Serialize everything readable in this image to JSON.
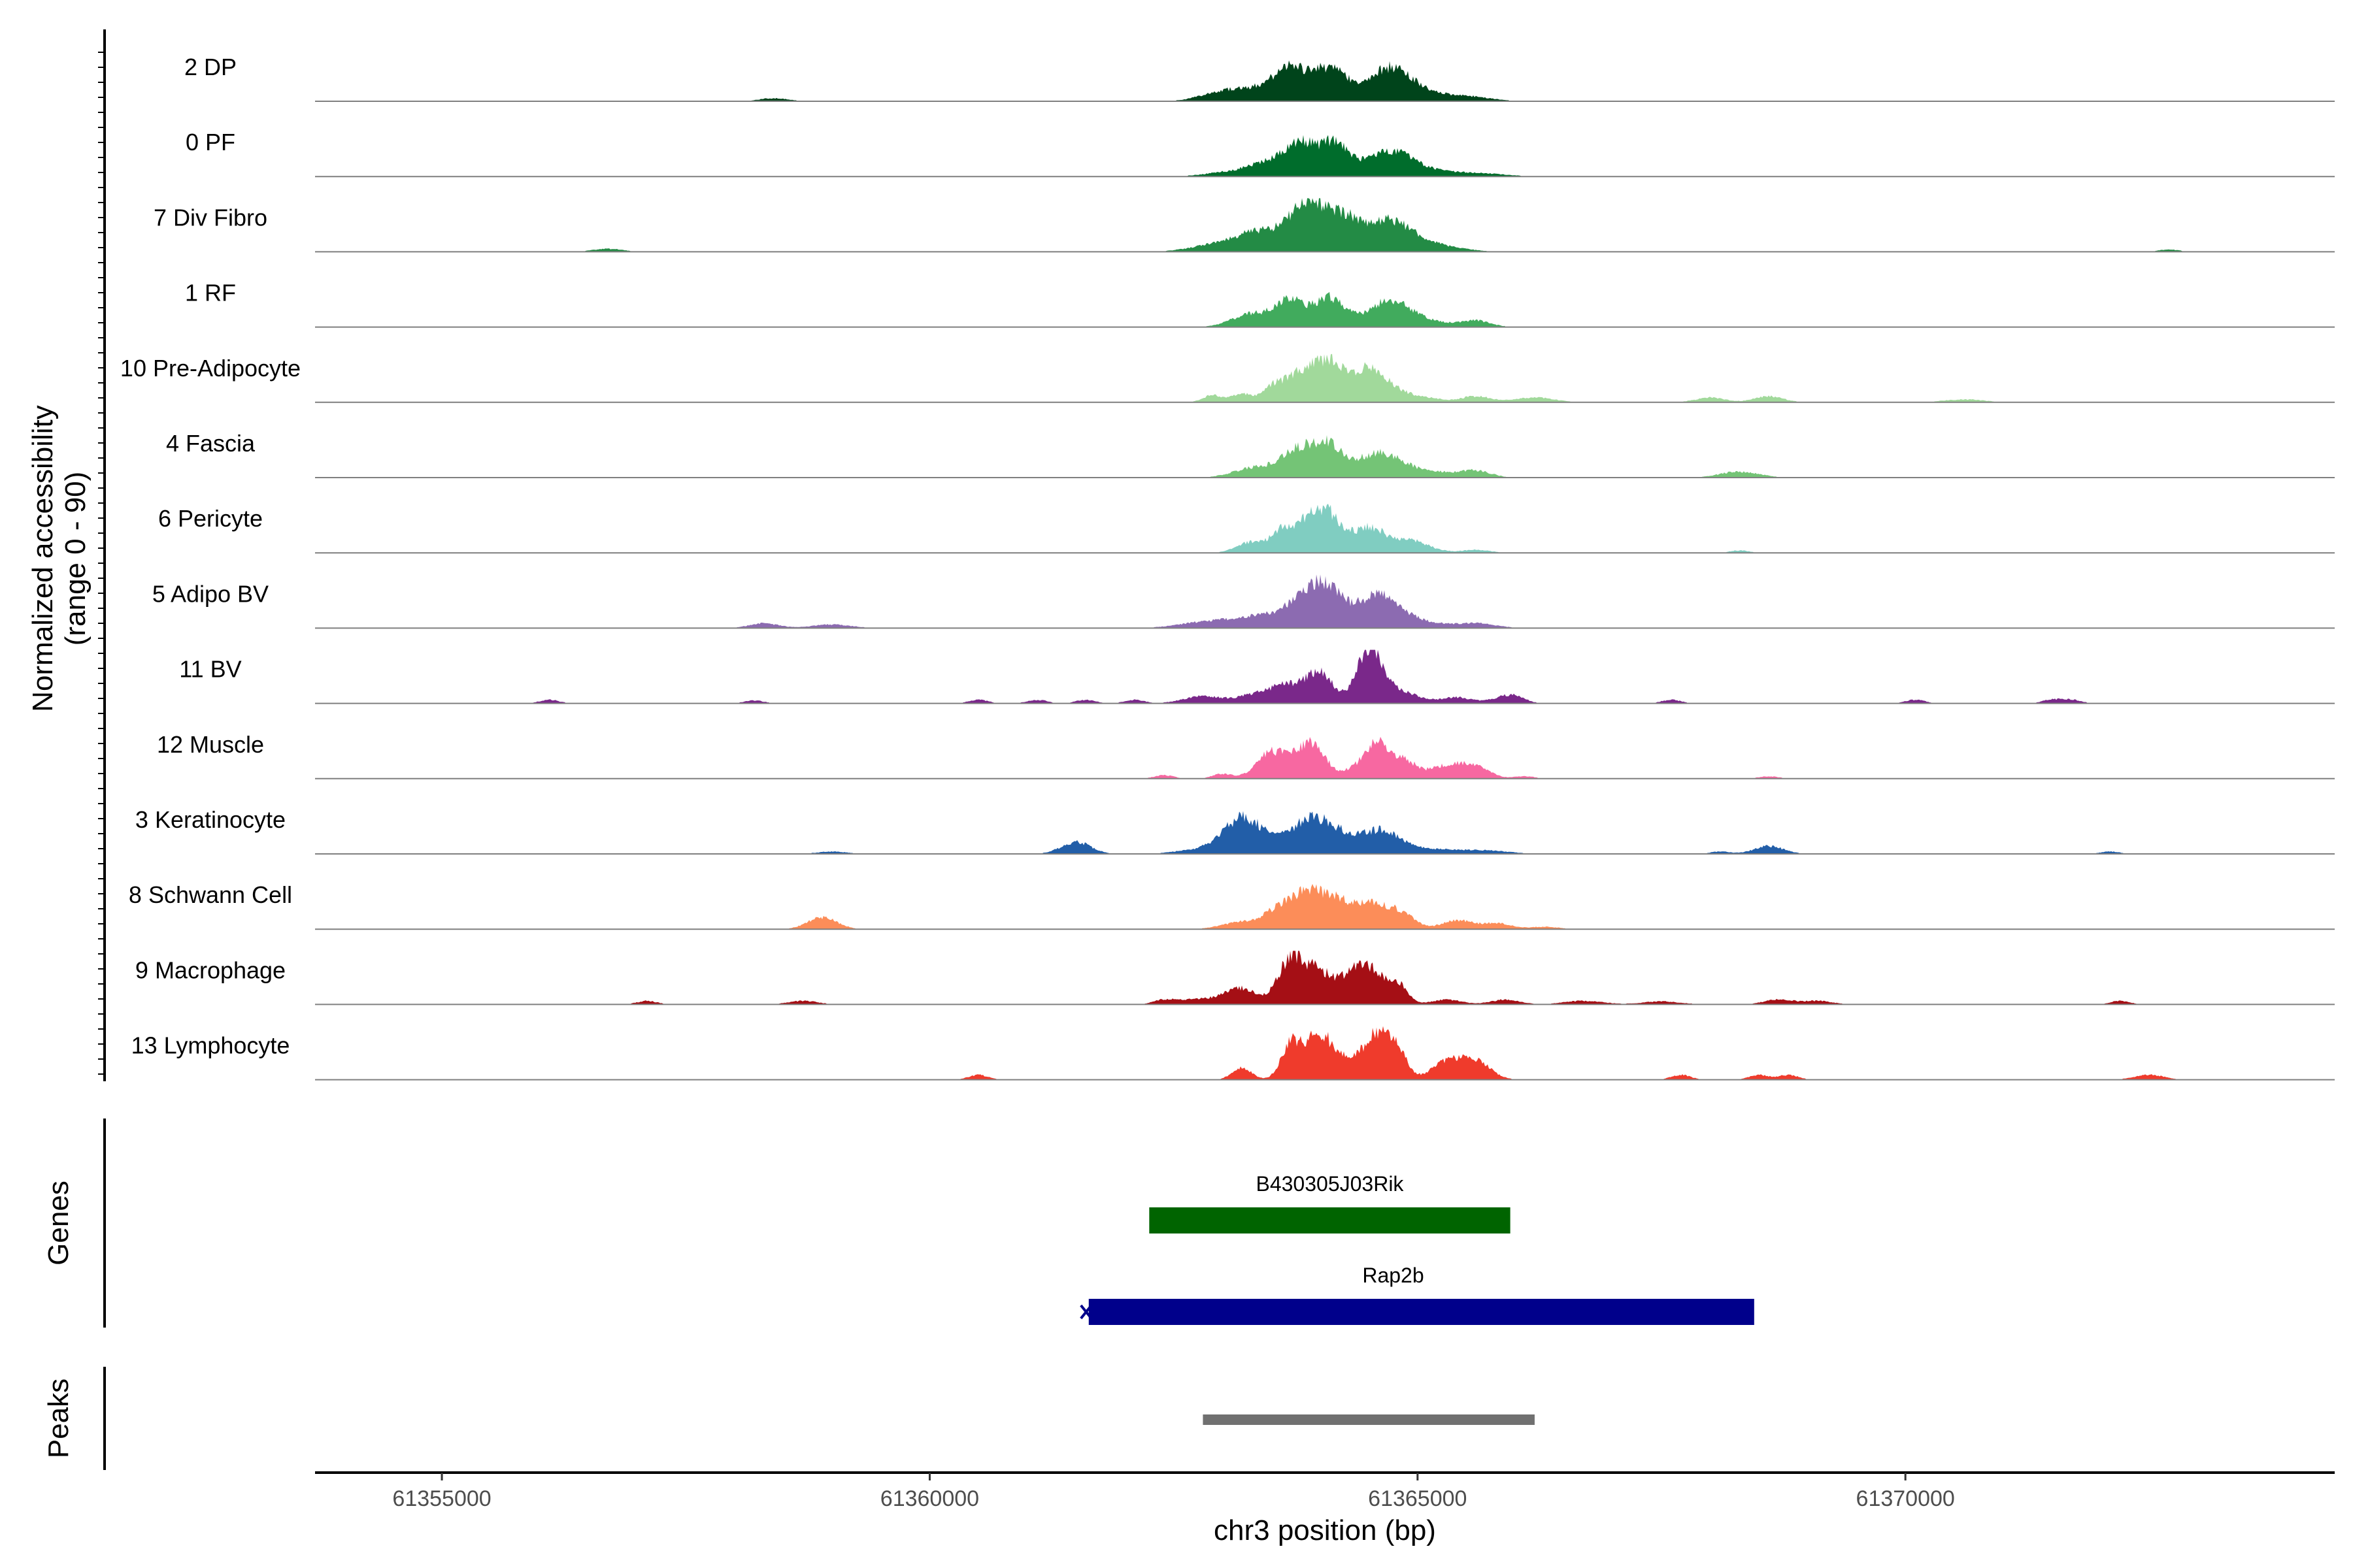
{
  "chart_data": {
    "type": "area",
    "title": "",
    "xlabel": "chr3 position (bp)",
    "ylabel": "Normalized accessibility",
    "ylabel_sub": "(range 0 - 90)",
    "ylim": [
      0,
      90
    ],
    "xlim": [
      61353700,
      61374400
    ],
    "x_ticks": [
      61355000,
      61360000,
      61365000,
      61370000
    ],
    "x_tick_labels": [
      "61355000",
      "61360000",
      "61365000",
      "61370000"
    ],
    "series": [
      {
        "name": "2 DP",
        "color": "#00441b",
        "peaks": [
          [
            61362900,
            180,
            6
          ],
          [
            61363300,
            300,
            22
          ],
          [
            61363700,
            160,
            48
          ],
          [
            61364100,
            170,
            55
          ],
          [
            61364700,
            220,
            52
          ],
          [
            61365100,
            300,
            12
          ],
          [
            61365600,
            200,
            5
          ],
          [
            61358400,
            150,
            5
          ]
        ]
      },
      {
        "name": "0 PF",
        "color": "#006d2c",
        "peaks": [
          [
            61363100,
            250,
            8
          ],
          [
            61363500,
            200,
            22
          ],
          [
            61363800,
            150,
            50
          ],
          [
            61364150,
            150,
            55
          ],
          [
            61364700,
            220,
            40
          ],
          [
            61365100,
            300,
            10
          ],
          [
            61365700,
            250,
            4
          ]
        ]
      },
      {
        "name": "7 Div Fibro",
        "color": "#238b45",
        "peaks": [
          [
            61362900,
            250,
            10
          ],
          [
            61363400,
            250,
            35
          ],
          [
            61363850,
            160,
            72
          ],
          [
            61364200,
            180,
            60
          ],
          [
            61364700,
            220,
            48
          ],
          [
            61365100,
            300,
            12
          ],
          [
            61356700,
            150,
            5
          ],
          [
            61372700,
            100,
            4
          ]
        ]
      },
      {
        "name": "1 RF",
        "color": "#41ab5d",
        "peaks": [
          [
            61363300,
            200,
            22
          ],
          [
            61363700,
            150,
            45
          ],
          [
            61364100,
            150,
            48
          ],
          [
            61364700,
            220,
            42
          ],
          [
            61365100,
            250,
            8
          ],
          [
            61365600,
            150,
            10
          ]
        ]
      },
      {
        "name": "10 Pre-Adipocyte",
        "color": "#a1d99b",
        "peaks": [
          [
            61362900,
            100,
            12
          ],
          [
            61363200,
            100,
            14
          ],
          [
            61363500,
            100,
            18
          ],
          [
            61363800,
            180,
            48
          ],
          [
            61364100,
            150,
            55
          ],
          [
            61364500,
            180,
            55
          ],
          [
            61364900,
            250,
            12
          ],
          [
            61365600,
            150,
            10
          ],
          [
            61366200,
            200,
            8
          ],
          [
            61368000,
            150,
            8
          ],
          [
            61368600,
            150,
            10
          ],
          [
            61370600,
            200,
            5
          ]
        ]
      },
      {
        "name": "4 Fascia",
        "color": "#74c476",
        "peaks": [
          [
            61363300,
            200,
            15
          ],
          [
            61363800,
            200,
            48
          ],
          [
            61364100,
            150,
            40
          ],
          [
            61364600,
            220,
            40
          ],
          [
            61365100,
            300,
            10
          ],
          [
            61365600,
            150,
            10
          ],
          [
            61368300,
            200,
            10
          ]
        ]
      },
      {
        "name": "6 Pericyte",
        "color": "#80cdc1",
        "peaks": [
          [
            61363300,
            150,
            18
          ],
          [
            61363600,
            100,
            28
          ],
          [
            61363900,
            180,
            50
          ],
          [
            61364100,
            150,
            42
          ],
          [
            61364500,
            150,
            40
          ],
          [
            61364900,
            200,
            22
          ],
          [
            61365600,
            150,
            5
          ],
          [
            61368300,
            100,
            4
          ]
        ]
      },
      {
        "name": "5 Adipo BV",
        "color": "#8c6bb1",
        "peaks": [
          [
            61362900,
            300,
            12
          ],
          [
            61363500,
            250,
            22
          ],
          [
            61363900,
            180,
            48
          ],
          [
            61364100,
            150,
            42
          ],
          [
            61364600,
            220,
            58
          ],
          [
            61365100,
            200,
            8
          ],
          [
            61365600,
            200,
            8
          ],
          [
            61358300,
            150,
            8
          ],
          [
            61359000,
            200,
            6
          ]
        ]
      },
      {
        "name": "11 BV",
        "color": "#7a288a",
        "peaks": [
          [
            61362800,
            200,
            12
          ],
          [
            61363400,
            200,
            18
          ],
          [
            61363700,
            150,
            25
          ],
          [
            61364000,
            130,
            50
          ],
          [
            61364500,
            130,
            85
          ],
          [
            61364800,
            200,
            20
          ],
          [
            61365400,
            150,
            10
          ],
          [
            61365900,
            150,
            10
          ],
          [
            61356100,
            100,
            6
          ],
          [
            61358200,
            100,
            5
          ],
          [
            61360500,
            100,
            6
          ],
          [
            61361100,
            100,
            6
          ],
          [
            61361600,
            100,
            6
          ],
          [
            61362100,
            100,
            6
          ],
          [
            61366000,
            100,
            6
          ],
          [
            61367600,
            100,
            6
          ],
          [
            61370100,
            100,
            6
          ],
          [
            61371500,
            100,
            6
          ],
          [
            61371700,
            100,
            6
          ]
        ]
      },
      {
        "name": "12 Muscle",
        "color": "#f768a1",
        "peaks": [
          [
            61362400,
            100,
            6
          ],
          [
            61363000,
            100,
            8
          ],
          [
            61363500,
            150,
            45
          ],
          [
            61363900,
            150,
            60
          ],
          [
            61364300,
            100,
            8
          ],
          [
            61364600,
            150,
            62
          ],
          [
            61364900,
            100,
            20
          ],
          [
            61365300,
            200,
            22
          ],
          [
            61365600,
            150,
            15
          ],
          [
            61366100,
            100,
            4
          ],
          [
            61368600,
            100,
            4
          ]
        ]
      },
      {
        "name": "3 Keratinocyte",
        "color": "#225ea8",
        "peaks": [
          [
            61361500,
            150,
            20
          ],
          [
            61362700,
            200,
            6
          ],
          [
            61363200,
            200,
            60
          ],
          [
            61363500,
            150,
            8
          ],
          [
            61363900,
            200,
            58
          ],
          [
            61364200,
            150,
            20
          ],
          [
            61364600,
            200,
            38
          ],
          [
            61365100,
            300,
            8
          ],
          [
            61365700,
            250,
            5
          ],
          [
            61368600,
            150,
            13
          ],
          [
            61368100,
            100,
            4
          ],
          [
            61359000,
            150,
            4
          ],
          [
            61372100,
            100,
            4
          ]
        ]
      },
      {
        "name": "8 Schwann Cell",
        "color": "#fc8d59",
        "peaks": [
          [
            61358900,
            150,
            20
          ],
          [
            61363200,
            200,
            12
          ],
          [
            61363600,
            150,
            35
          ],
          [
            61363900,
            150,
            58
          ],
          [
            61364200,
            150,
            40
          ],
          [
            61364500,
            150,
            35
          ],
          [
            61364800,
            150,
            30
          ],
          [
            61365400,
            150,
            15
          ],
          [
            61365800,
            150,
            10
          ],
          [
            61366300,
            150,
            4
          ]
        ]
      },
      {
        "name": "9 Macrophage",
        "color": "#a50f15",
        "peaks": [
          [
            61362800,
            250,
            10
          ],
          [
            61363200,
            150,
            25
          ],
          [
            61363700,
            130,
            75
          ],
          [
            61364000,
            150,
            55
          ],
          [
            61364300,
            100,
            25
          ],
          [
            61364500,
            150,
            60
          ],
          [
            61364800,
            100,
            30
          ],
          [
            61365300,
            150,
            8
          ],
          [
            61365900,
            150,
            8
          ],
          [
            61357100,
            100,
            6
          ],
          [
            61358700,
            150,
            6
          ],
          [
            61362400,
            100,
            6
          ],
          [
            61366700,
            200,
            6
          ],
          [
            61367500,
            200,
            5
          ],
          [
            61368700,
            150,
            8
          ],
          [
            61369100,
            150,
            6
          ],
          [
            61372200,
            100,
            6
          ]
        ]
      },
      {
        "name": "13 Lymphocyte",
        "color": "#ef3b2c",
        "peaks": [
          [
            61363200,
            100,
            20
          ],
          [
            61363700,
            100,
            55
          ],
          [
            61364000,
            150,
            78
          ],
          [
            61364300,
            100,
            20
          ],
          [
            61364600,
            150,
            80
          ],
          [
            61364800,
            100,
            30
          ],
          [
            61365300,
            150,
            30
          ],
          [
            61365600,
            150,
            30
          ],
          [
            61360500,
            100,
            8
          ],
          [
            61367700,
            100,
            8
          ],
          [
            61368500,
            100,
            8
          ],
          [
            61368800,
            100,
            8
          ],
          [
            61372500,
            150,
            8
          ]
        ]
      }
    ],
    "genes": [
      {
        "name": "B430305J03Rik",
        "start": 61362250,
        "end": 61365950,
        "color": "#006400",
        "strand": "+"
      },
      {
        "name": "Rap2b",
        "start": 61361630,
        "end": 61368450,
        "color": "#00008b",
        "strand": "-"
      }
    ],
    "peaks_track": [
      {
        "start": 61362800,
        "end": 61366200,
        "color": "#707070"
      }
    ],
    "panel_titles": {
      "genes": "Genes",
      "peaks": "Peaks"
    }
  }
}
